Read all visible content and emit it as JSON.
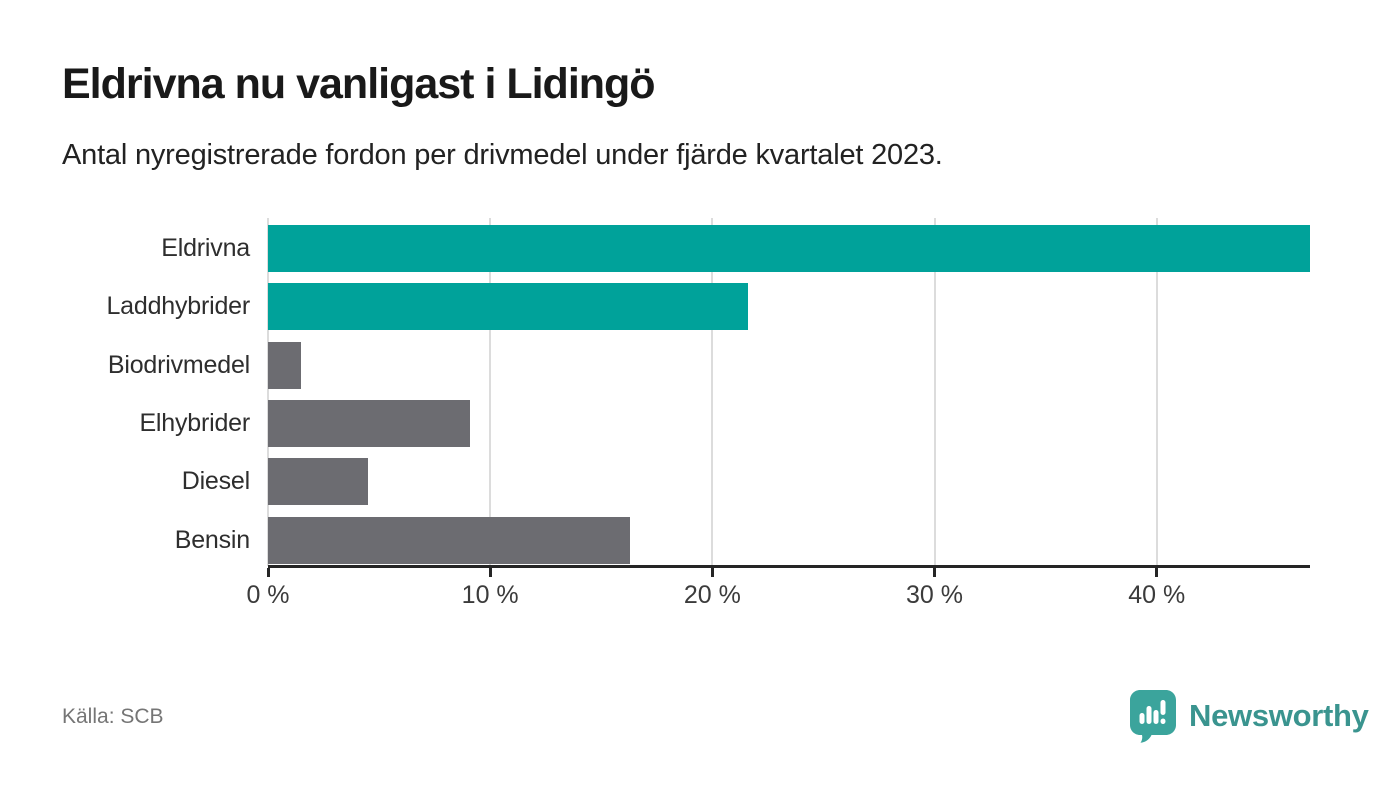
{
  "header": {
    "title": "Eldrivna nu vanligast i Lidingö",
    "subtitle": "Antal nyregistrerade fordon per drivmedel under fjärde kvartalet 2023."
  },
  "footer": {
    "source": "Källa: SCB",
    "brand": "Newsworthy"
  },
  "colors": {
    "teal": "#00a29a",
    "gray": "#6c6c71",
    "grid": "#dcdcdc",
    "axis": "#252525",
    "logo_badge": "#3ba49c",
    "logo_text": "#3a948f"
  },
  "chart_data": {
    "type": "bar",
    "orientation": "horizontal",
    "title": "Eldrivna nu vanligast i Lidingö",
    "subtitle": "Antal nyregistrerade fordon per drivmedel under fjärde kvartalet 2023.",
    "categories": [
      "Eldrivna",
      "Laddhybrider",
      "Biodrivmedel",
      "Elhybrider",
      "Diesel",
      "Bensin"
    ],
    "values": [
      46.9,
      21.6,
      1.5,
      9.1,
      4.5,
      16.3
    ],
    "unit": "%",
    "bar_colors": [
      "teal",
      "teal",
      "gray",
      "gray",
      "gray",
      "gray"
    ],
    "xlabel": "",
    "ylabel": "",
    "xlim": [
      0,
      46.9
    ],
    "xticks": [
      0,
      10,
      20,
      30,
      40
    ],
    "xtick_labels": [
      "0 %",
      "10 %",
      "20 %",
      "30 %",
      "40 %"
    ],
    "grid": "vertical",
    "legend": "none"
  }
}
